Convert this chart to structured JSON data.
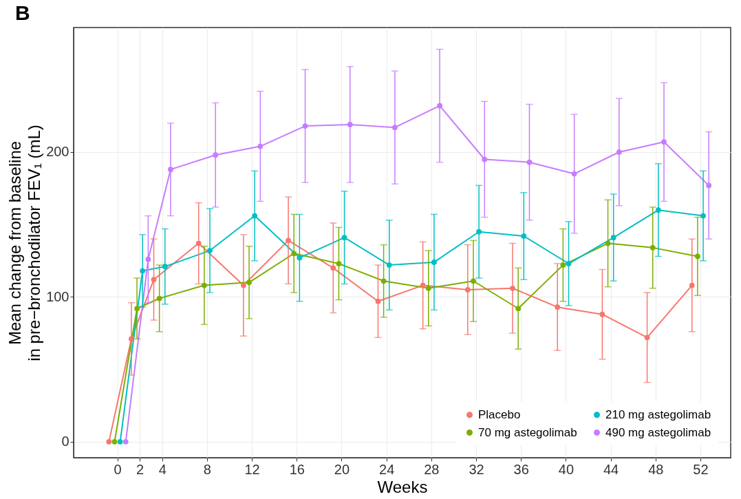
{
  "chart_data": {
    "type": "line",
    "title": "B",
    "xlabel": "Weeks",
    "ylabel": "Mean change from baseline\nin pre−bronchodilator FEV₁ (mL)",
    "xlim": [
      -3.9,
      54.7
    ],
    "xticks": [
      {
        "value": 0,
        "label": "0"
      },
      {
        "value": 2,
        "label": "2"
      },
      {
        "value": 4,
        "label": "4"
      },
      {
        "value": 8,
        "label": "8"
      },
      {
        "value": 12,
        "label": "12"
      },
      {
        "value": 16,
        "label": "16"
      },
      {
        "value": 20,
        "label": "20"
      },
      {
        "value": 24,
        "label": "24"
      },
      {
        "value": 28,
        "label": "28"
      },
      {
        "value": 32,
        "label": "32"
      },
      {
        "value": 36,
        "label": "36"
      },
      {
        "value": 40,
        "label": "40"
      },
      {
        "value": 44,
        "label": "44"
      },
      {
        "value": 48,
        "label": "48"
      },
      {
        "value": 52,
        "label": "52"
      }
    ],
    "ylim": [
      -11,
      286
    ],
    "yticks": [
      0,
      100,
      200
    ],
    "grid": true,
    "legend": "bottom right",
    "marker": "circle",
    "line_style": "solid",
    "series": [
      {
        "name": "Placebo",
        "color": "#f8766d",
        "x": [
          -0.75,
          1.25,
          3.25,
          7.25,
          11.25,
          15.25,
          19.25,
          23.25,
          27.25,
          31.25,
          35.25,
          39.25,
          43.25,
          47.25,
          51.25
        ],
        "values": [
          0,
          71,
          112,
          137,
          108,
          139,
          120,
          97,
          108,
          105,
          106,
          93,
          88,
          72,
          108
        ],
        "errors": [
          null,
          25,
          28,
          28,
          35,
          30,
          31,
          25,
          30,
          31,
          31,
          30,
          31,
          31,
          32
        ]
      },
      {
        "name": "70 mg astegolimab",
        "color": "#7cae00",
        "x": [
          -0.25,
          1.75,
          3.75,
          7.75,
          11.75,
          15.75,
          19.75,
          23.75,
          27.75,
          31.75,
          35.75,
          39.75,
          43.75,
          47.75,
          51.75
        ],
        "values": [
          0,
          92,
          99,
          108,
          110,
          130,
          123,
          111,
          106,
          111,
          92,
          122,
          137,
          134,
          128
        ],
        "errors": [
          null,
          21,
          23,
          27,
          25,
          27,
          25,
          25,
          26,
          28,
          28,
          25,
          30,
          28,
          27
        ]
      },
      {
        "name": "210 mg astegolimab",
        "color": "#00bfc4",
        "x": [
          0.25,
          2.25,
          4.25,
          8.25,
          12.25,
          16.25,
          20.25,
          24.25,
          28.25,
          32.25,
          36.25,
          40.25,
          44.25,
          48.25,
          52.25
        ],
        "values": [
          0,
          118,
          121,
          132,
          156,
          127,
          141,
          122,
          124,
          145,
          142,
          123,
          141,
          160,
          156
        ],
        "errors": [
          null,
          25,
          26,
          29,
          31,
          30,
          32,
          31,
          33,
          32,
          30,
          29,
          30,
          32,
          31
        ]
      },
      {
        "name": "490 mg astegolimab",
        "color": "#c77cff",
        "x": [
          0.75,
          2.75,
          4.75,
          8.75,
          12.75,
          16.75,
          20.75,
          24.75,
          28.75,
          32.75,
          36.75,
          40.75,
          44.75,
          48.75,
          52.75
        ],
        "values": [
          0,
          126,
          188,
          198,
          204,
          218,
          219,
          217,
          232,
          195,
          193,
          185,
          200,
          207,
          177
        ],
        "errors": [
          null,
          30,
          32,
          36,
          38,
          39,
          40,
          39,
          39,
          40,
          40,
          41,
          37,
          41,
          37
        ]
      }
    ]
  }
}
